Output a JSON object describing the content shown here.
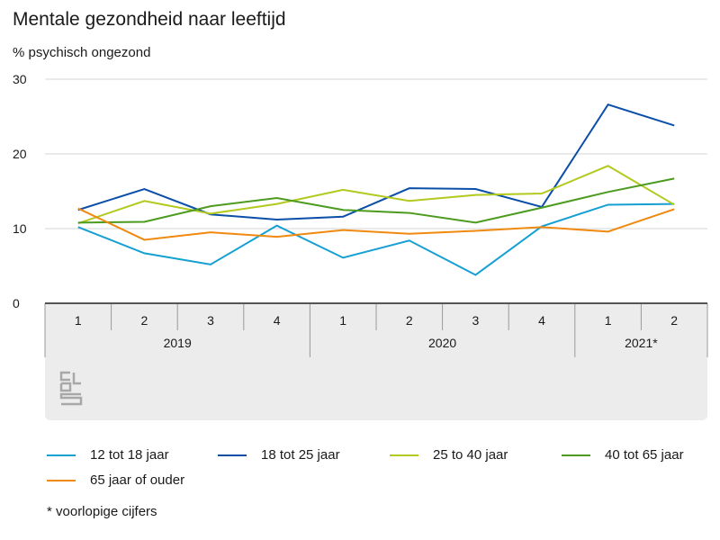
{
  "chart_data": {
    "type": "line",
    "title": "Mentale gezondheid naar leeftijd",
    "ylabel": "% psychisch ongezond",
    "ylim": [
      0,
      30
    ],
    "yticks": [
      0,
      10,
      20,
      30
    ],
    "quarters": [
      "1",
      "2",
      "3",
      "4",
      "1",
      "2",
      "3",
      "4",
      "1",
      "2"
    ],
    "years": [
      {
        "label": "2019",
        "span": 4
      },
      {
        "label": "2020",
        "span": 4
      },
      {
        "label": "2021*",
        "span": 2
      }
    ],
    "series": [
      {
        "name": "12 tot 18 jaar",
        "color": "#14a0d2",
        "values": [
          10.2,
          6.7,
          5.2,
          10.4,
          6.1,
          8.4,
          3.8,
          10.3,
          13.2,
          13.3
        ]
      },
      {
        "name": "18 tot 25 jaar",
        "color": "#0b4fa8",
        "values": [
          12.5,
          15.3,
          11.9,
          11.2,
          11.6,
          15.4,
          15.3,
          12.9,
          26.6,
          23.8
        ]
      },
      {
        "name": "25 to 40 jaar",
        "color": "#b2c91e",
        "values": [
          10.7,
          13.7,
          12.0,
          13.3,
          15.2,
          13.7,
          14.5,
          14.7,
          18.4,
          13.2
        ]
      },
      {
        "name": "40 tot 65 jaar",
        "color": "#4c9b1f",
        "values": [
          10.8,
          10.9,
          13.0,
          14.1,
          12.5,
          12.1,
          10.8,
          12.8,
          14.9,
          16.7
        ]
      },
      {
        "name": "65 jaar of ouder",
        "color": "#f0890f",
        "values": [
          12.7,
          8.5,
          9.5,
          8.9,
          9.8,
          9.3,
          9.7,
          10.2,
          9.6,
          12.6
        ]
      }
    ],
    "footnote": "* voorlopige cijfers"
  }
}
